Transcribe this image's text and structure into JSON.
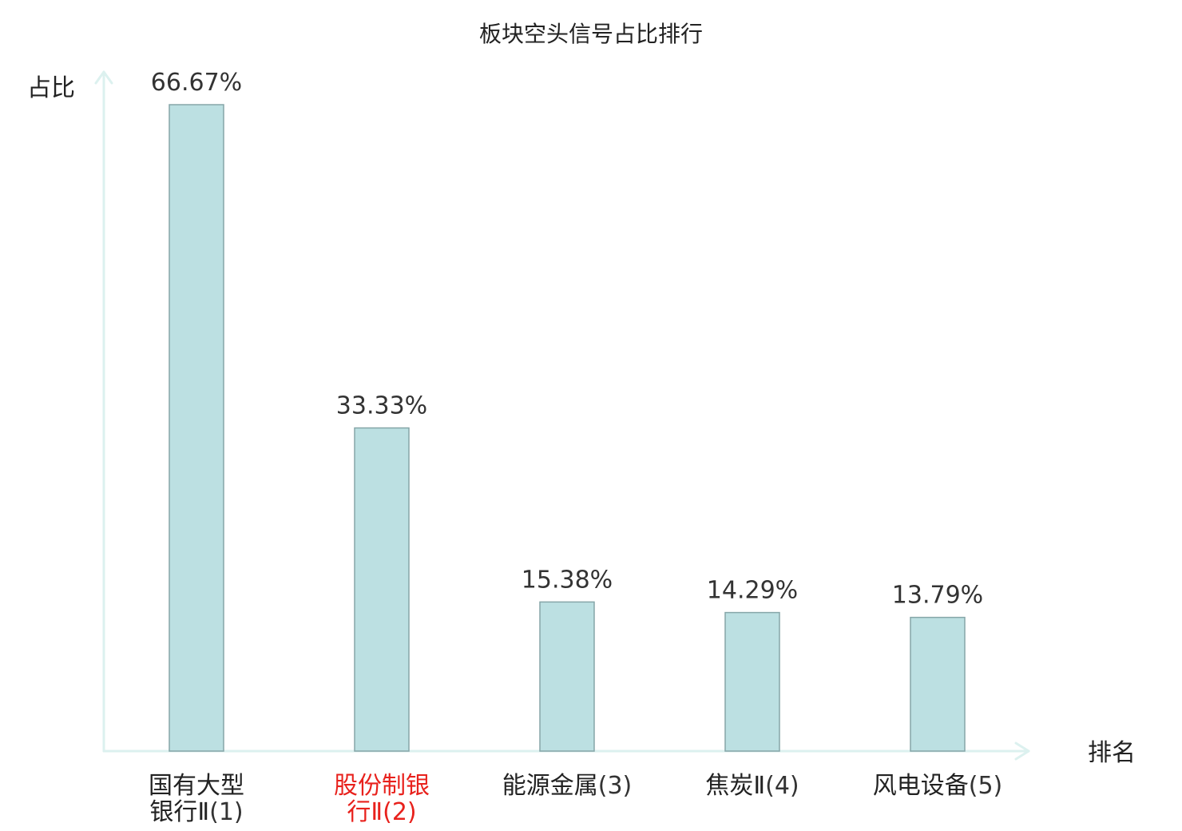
{
  "chart_data": {
    "type": "bar",
    "title": "板块空头信号占比排行",
    "xlabel": "排名",
    "ylabel": "占比",
    "ylim": [
      0,
      66.67
    ],
    "grid": false,
    "value_suffix": "%",
    "categories": [
      {
        "lines": [
          "国有大型",
          "银行Ⅱ"
        ],
        "rank": "(1)",
        "highlight": false
      },
      {
        "lines": [
          "股份制银",
          "行Ⅱ"
        ],
        "rank": "(2)",
        "highlight": true
      },
      {
        "lines": [
          "能源金属"
        ],
        "rank": "(3)",
        "highlight": false
      },
      {
        "lines": [
          "焦炭Ⅱ"
        ],
        "rank": "(4)",
        "highlight": false
      },
      {
        "lines": [
          "风电设备"
        ],
        "rank": "(5)",
        "highlight": false
      }
    ],
    "values": [
      66.67,
      33.33,
      15.38,
      14.29,
      13.79
    ],
    "labels": [
      "66.67%",
      "33.33%",
      "15.38%",
      "14.29%",
      "13.79%"
    ],
    "colors": {
      "bar_fill": "#bce0e2",
      "bar_stroke": "#86a6a8",
      "axis": "#dcf1ef",
      "highlight": "#e8211c"
    }
  }
}
